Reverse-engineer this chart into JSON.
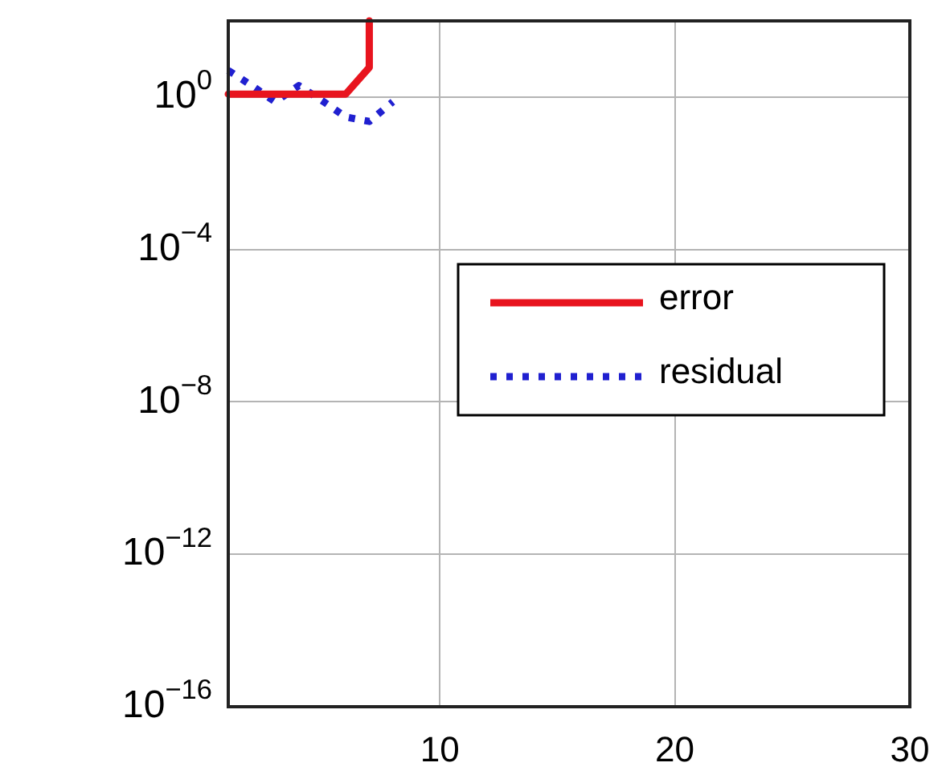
{
  "chart_data": {
    "type": "line",
    "log": "y",
    "grid": true,
    "legend": "right",
    "marker": "none",
    "xlim": [
      1,
      30
    ],
    "xticks": [
      {
        "value": 1,
        "label": null
      },
      10,
      20,
      30
    ],
    "ylim": [
      1e-16,
      100
    ],
    "yticks": [
      {
        "value": 1e-16,
        "label": "10$^{−16}$"
      },
      {
        "value": 1e-12,
        "label": "10$^{−12}$"
      },
      {
        "value": 1e-08,
        "label": "10$^{−8}$"
      },
      {
        "value": 0.0001,
        "label": "10$^{−4}$"
      },
      {
        "value": 1,
        "label": "10$^{0}$"
      }
    ],
    "series": [
      {
        "name": "error",
        "color": "#e8141e",
        "line_style": "solid",
        "x": [
          1,
          2,
          3,
          4,
          5,
          6,
          7,
          7
        ],
        "values": [
          1.2,
          1.2,
          1.2,
          1.2,
          1.2,
          1.2,
          6,
          100
        ]
      },
      {
        "name": "residual",
        "color": "#2020d0",
        "line_style": "dotted",
        "x": [
          1,
          2,
          3,
          4,
          5,
          6,
          7,
          8
        ],
        "values": [
          5,
          2,
          0.75,
          2,
          0.8,
          0.3,
          0.23,
          0.75
        ]
      }
    ]
  }
}
